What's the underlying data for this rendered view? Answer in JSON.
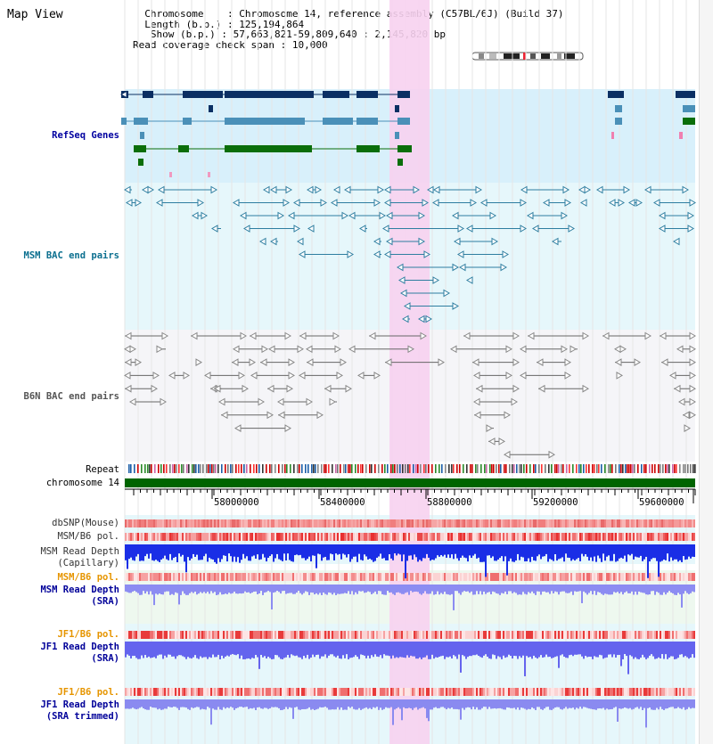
{
  "header": {
    "title": "Map View",
    "info": {
      "chromosome_label": "Chromosome",
      "chromosome_value": "Chromosome 14, reference assembly (C57BL/6J) (Build 37)",
      "length_label": "Length (b.p.)",
      "length_value": "125,194,864",
      "show_label": "Show (b.p.)",
      "show_value": "57,663,821-59,809,640 : 2,145,820 bp",
      "coverage_label": "Read coverage check span",
      "coverage_value": "10,000"
    }
  },
  "tracks": {
    "refseq": "RefSeq Genes",
    "msm_bac": "MSM BAC end pairs",
    "b6n_bac": "B6N BAC end pairs",
    "repeat": "Repeat",
    "chromosome": "chromosome 14",
    "dbsnp": "dbSNP(Mouse)",
    "msm_b6_pol": "MSM/B6 pol.",
    "msm_depth_cap_1": "MSM Read Depth",
    "msm_depth_cap_2": "(Capillary)",
    "msm_b6_pol2": "MSM/B6 pol.",
    "msm_depth_sra_1": "MSM Read Depth",
    "msm_depth_sra_2": "(SRA)",
    "jf1_b6_pol": "JF1/B6 pol.",
    "jf1_depth_sra_1": "JF1 Read Depth",
    "jf1_depth_sra_2": "(SRA)",
    "jf1_b6_pol2": "JF1/B6 pol.",
    "jf1_depth_trim_1": "JF1 Read Depth",
    "jf1_depth_trim_2": "(SRA trimmed)"
  },
  "ruler": {
    "tick_labels": [
      "58000000",
      "58400000",
      "58800000",
      "59200000",
      "59600000"
    ]
  },
  "colors": {
    "refseq_navy": "#0b2f63",
    "refseq_teal": "#4a90b8",
    "refseq_green": "#0a6e0a",
    "msm_bac": "#2e7ea0",
    "b6n_bac": "#666666",
    "highlight": "#f7d2f0",
    "chromosome_bar": "#006400",
    "orange_label": "#e69500",
    "blue_label": "#000099",
    "teal_label": "#006f8f"
  }
}
